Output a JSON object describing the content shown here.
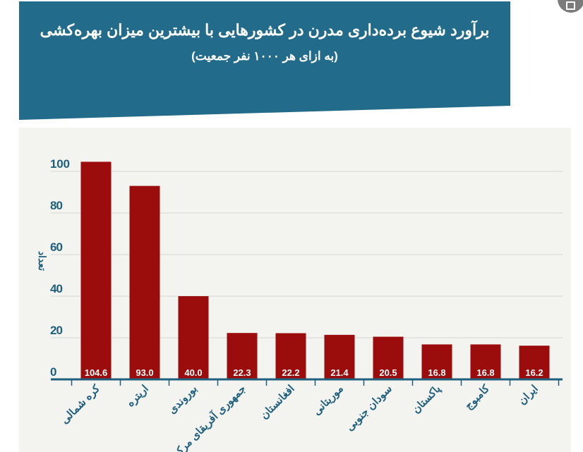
{
  "header": {
    "title": "برآورد شیوع برده‌داری مدرن در کشورهایی با بیشترین میزان بهره‌کشی",
    "subtitle": "(به ازای هر ۱۰۰۰ نفر جمعیت)"
  },
  "colors": {
    "header_bg": "#236b8a",
    "bar": "#9b0c0c",
    "axis": "#1f5f7e",
    "panel_bg": "#f3f3ef"
  },
  "chart_data": {
    "type": "bar",
    "title": "برآورد شیوع برده‌داری مدرن در کشورهایی با بیشترین میزان بهره‌کشی",
    "subtitle": "(به ازای هر ۱۰۰۰ نفر جمعیت)",
    "xlabel": "",
    "ylabel": "تعداد",
    "ylim": [
      0,
      100
    ],
    "yticks": [
      0,
      20,
      40,
      60,
      80,
      100
    ],
    "grid": true,
    "categories": [
      "کره شمالی",
      "اریتره",
      "بوروندی",
      "جمهوری آفریقای مرکزی",
      "افغانستان",
      "موریتانی",
      "سودان جنوبی",
      "پاکستان",
      "کامبوج",
      "ایران"
    ],
    "values": [
      104.6,
      93.0,
      40.0,
      22.3,
      22.2,
      21.4,
      20.5,
      16.8,
      16.8,
      16.2
    ],
    "value_labels": [
      "104.6",
      "93.0",
      "40.0",
      "22.3",
      "22.2",
      "21.4",
      "20.5",
      "16.8",
      "16.8",
      "16.2"
    ]
  }
}
